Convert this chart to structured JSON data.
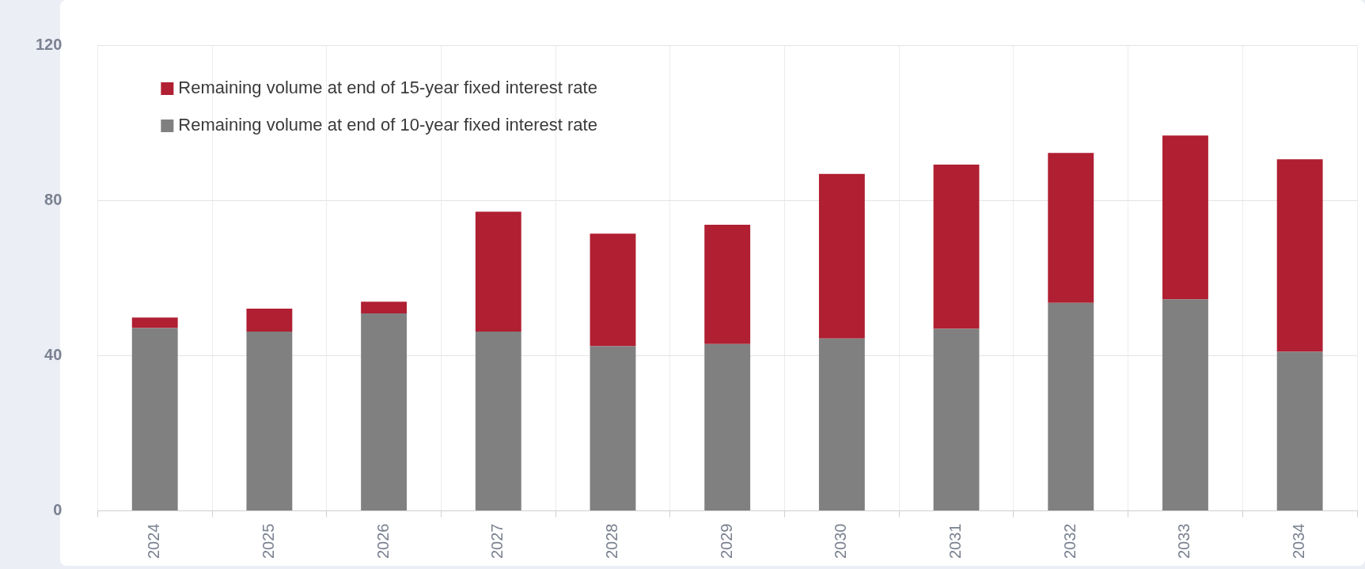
{
  "chart_data": {
    "type": "bar",
    "stacked": true,
    "categories": [
      "2024",
      "2025",
      "2026",
      "2027",
      "2028",
      "2029",
      "2030",
      "2031",
      "2032",
      "2033",
      "2034"
    ],
    "series": [
      {
        "name": "Remaining volume at end of 10-year fixed interest rate",
        "color": "#808080",
        "values": [
          47.1,
          46.2,
          50.9,
          46.2,
          42.4,
          43.0,
          44.4,
          46.9,
          53.6,
          54.5,
          41.0
        ]
      },
      {
        "name": "Remaining volume at end of 15-year fixed interest rate",
        "color": "#b01f32",
        "values": [
          2.7,
          5.9,
          3.0,
          30.9,
          29.0,
          30.7,
          42.4,
          42.3,
          38.6,
          42.2,
          49.6
        ]
      }
    ],
    "ylim": [
      0,
      120
    ],
    "yticks": [
      0,
      40,
      80,
      120
    ],
    "grid": true,
    "legend": "top left"
  }
}
